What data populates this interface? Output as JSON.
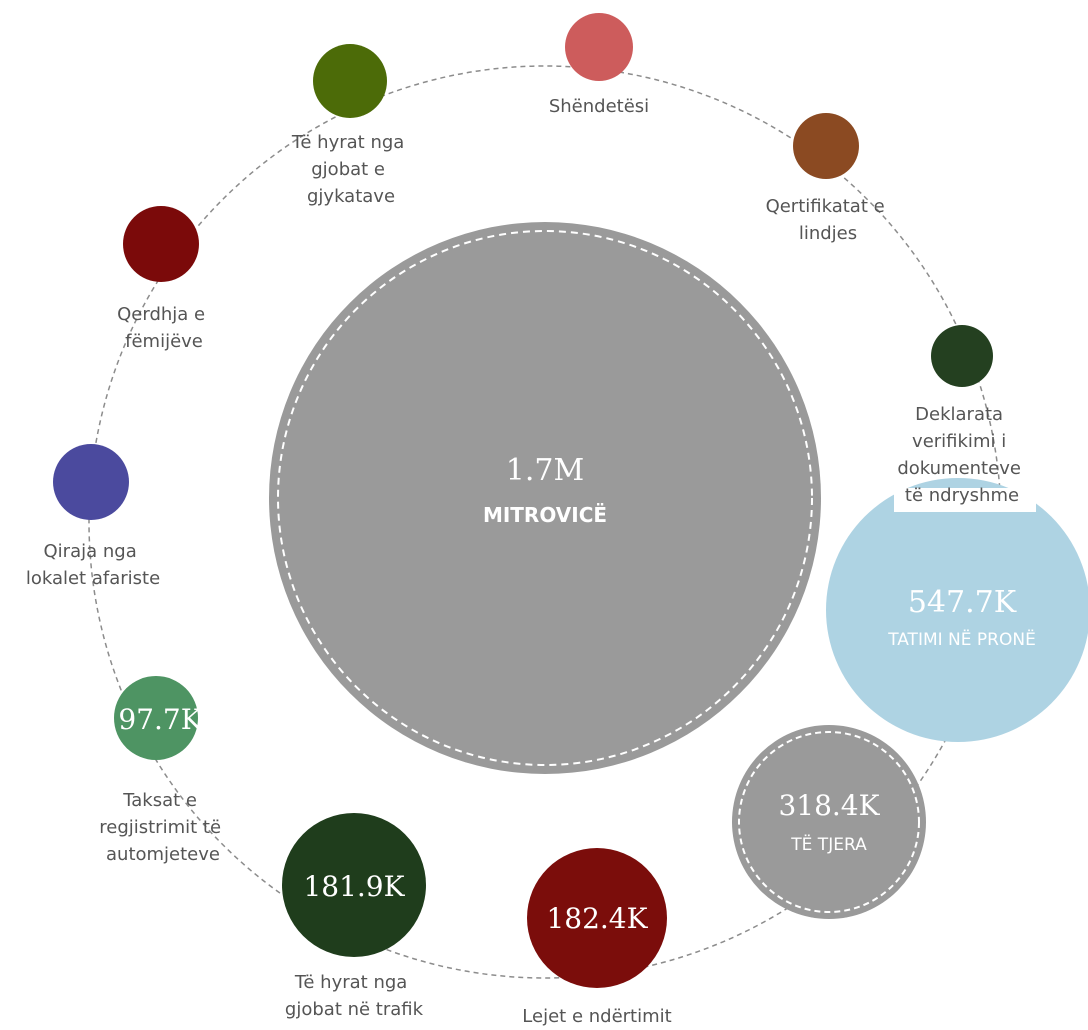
{
  "center": {
    "value": "1.7M",
    "label": "MITROVICË",
    "color": "#9a9a9a"
  },
  "nodes": [
    {
      "key": "shendetesi",
      "label_lines": [
        "Shëndetësi"
      ],
      "color": "#cd5c5c"
    },
    {
      "key": "qertifikatat",
      "label_lines": [
        "Qertifikatat e",
        "lindjes"
      ],
      "color": "#8b4a22"
    },
    {
      "key": "deklarata",
      "label_lines": [
        "Deklarata",
        "verifikimi i",
        "dokumenteve",
        "të ndryshme"
      ],
      "color": "#244020"
    },
    {
      "key": "tatimi",
      "value": "547.7K",
      "sublabel": "TATIMI NË PRONË",
      "color": "#aed3e3"
    },
    {
      "key": "te-tjera",
      "value": "318.4K",
      "sublabel": "TË TJERA",
      "color": "#9a9a9a"
    },
    {
      "key": "lejet",
      "value": "182.4K",
      "label_lines": [
        "Lejet e ndërtimit"
      ],
      "color": "#7b0d0b"
    },
    {
      "key": "gjobat-trafik",
      "value": "181.9K",
      "label_lines": [
        "Të hyrat nga",
        "gjobat në trafik"
      ],
      "color": "#1f3d1c"
    },
    {
      "key": "taksat",
      "value": "97.7K",
      "label_lines": [
        "Taksat e",
        "regjistrimit të",
        "automjeteve"
      ],
      "color": "#4e9463"
    },
    {
      "key": "qiraja",
      "label_lines": [
        "Qiraja nga",
        "lokalet afariste"
      ],
      "color": "#4b4a9e"
    },
    {
      "key": "qerdhja",
      "label_lines": [
        "Qerdhja e",
        "fëmijëve"
      ],
      "color": "#7b0a0a"
    },
    {
      "key": "gjobat-gjykata",
      "label_lines": [
        "Të hyrat nga",
        "gjobat e",
        "gjykatave"
      ],
      "color": "#4c6b08"
    }
  ]
}
